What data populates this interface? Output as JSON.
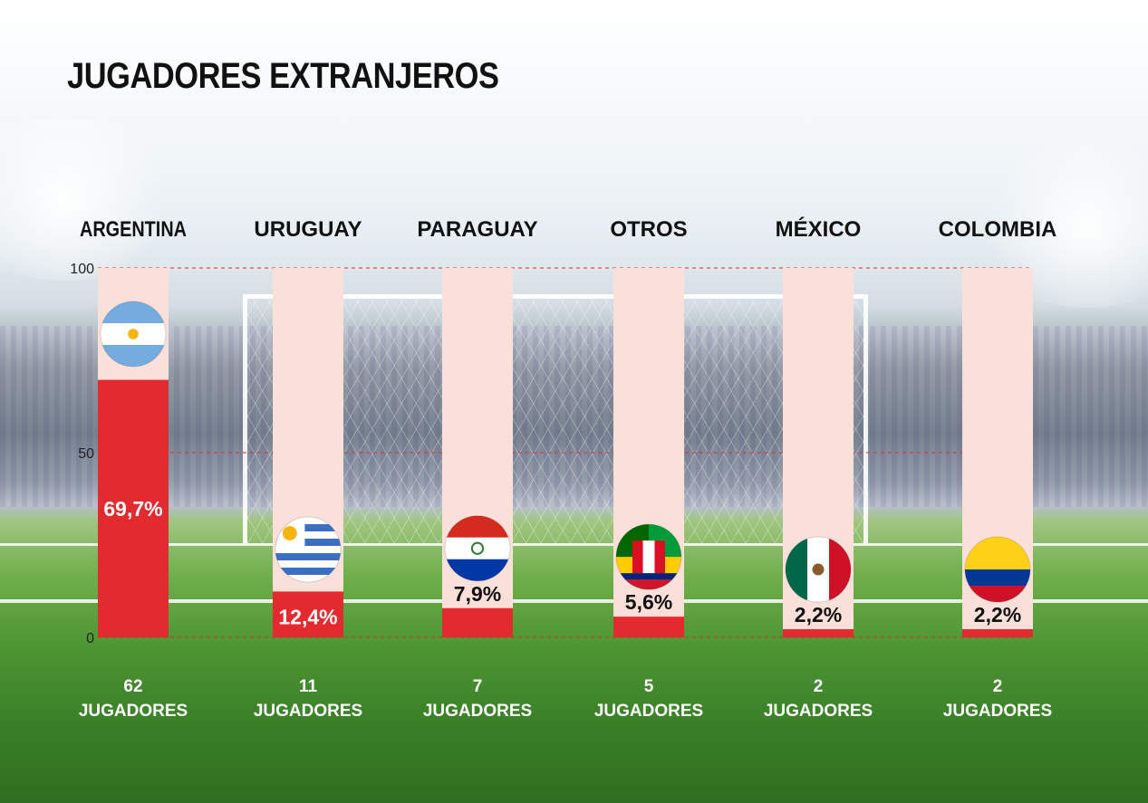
{
  "title": "JUGADORES EXTRANJEROS",
  "chart_data": {
    "type": "bar",
    "title": "JUGADORES EXTRANJEROS",
    "categories": [
      "ARGENTINA",
      "URUGUAY",
      "PARAGUAY",
      "OTROS",
      "MÉXICO",
      "COLOMBIA"
    ],
    "values": [
      69.7,
      12.4,
      7.9,
      5.6,
      2.2,
      2.2
    ],
    "value_labels": [
      "69,7%",
      "12,4%",
      "7,9%",
      "5,6%",
      "2,2%",
      "2,2%"
    ],
    "player_counts": [
      "62",
      "11",
      "7",
      "5",
      "2",
      "2"
    ],
    "count_unit": "JUGADORES",
    "flag_icons": [
      "argentina-flag-icon",
      "uruguay-flag-icon",
      "paraguay-flag-icon",
      "otros-flags-icon",
      "mexico-flag-icon",
      "colombia-flag-icon"
    ],
    "ylim": [
      0,
      100
    ],
    "yticks": [
      "0",
      "50",
      "100"
    ],
    "grid": true,
    "colors": {
      "bar": "#e32b2f",
      "track": "#fbe0da",
      "grid": "#d9302f",
      "text": "#111111"
    }
  }
}
